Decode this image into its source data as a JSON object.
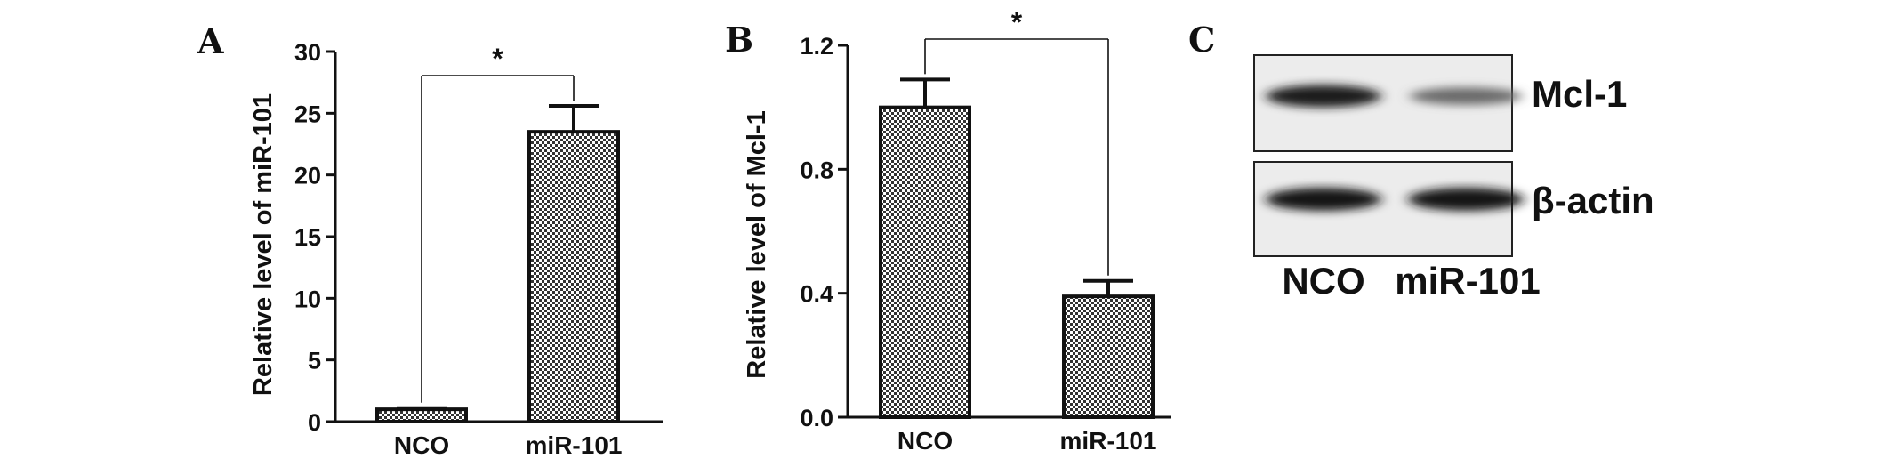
{
  "chart_data": [
    {
      "type": "bar",
      "panel": "A",
      "categories": [
        "NCO",
        "miR-101"
      ],
      "values": [
        1.0,
        23.5
      ],
      "errors": [
        0.1,
        2.1
      ],
      "ylabel": "Relative level of miR-101",
      "ylim": [
        0,
        30
      ],
      "yticks": [
        "0",
        "5",
        "10",
        "15",
        "20",
        "25",
        "30"
      ],
      "significance": "*"
    },
    {
      "type": "bar",
      "panel": "B",
      "categories": [
        "NCO",
        "miR-101"
      ],
      "values": [
        1.0,
        0.39
      ],
      "errors": [
        0.09,
        0.05
      ],
      "ylabel": "Relative level of Mcl-1",
      "ylim": [
        0,
        1.2
      ],
      "yticks": [
        "0.0",
        "0.4",
        "0.8",
        "1.2"
      ],
      "significance": "*"
    }
  ],
  "blot": {
    "panel": "C",
    "rows": [
      {
        "label": "Mcl-1",
        "intensities": [
          0.95,
          0.6
        ]
      },
      {
        "label": "β-actin",
        "intensities": [
          1.0,
          1.0
        ]
      }
    ],
    "lanes": [
      "NCO",
      "miR-101"
    ]
  }
}
